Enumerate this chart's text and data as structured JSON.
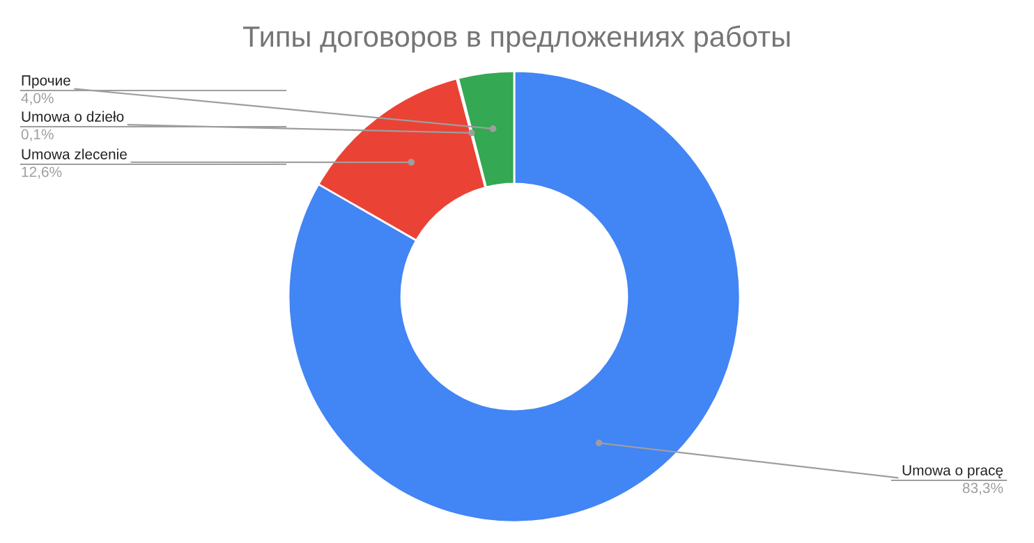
{
  "chart_data": {
    "type": "donut",
    "title": "Типы договоров в предложениях работы",
    "categories": [
      "Umowa o pracę",
      "Umowa zlecenie",
      "Umowa o dzieło",
      "Прочие"
    ],
    "values": [
      83.3,
      12.6,
      0.1,
      4.0
    ],
    "colors": [
      "#4285f4",
      "#ea4335",
      "#fbbc04",
      "#34a853"
    ],
    "value_labels": [
      "83,3%",
      "12,6%",
      "0,1%",
      "4,0%"
    ],
    "legend": false
  }
}
